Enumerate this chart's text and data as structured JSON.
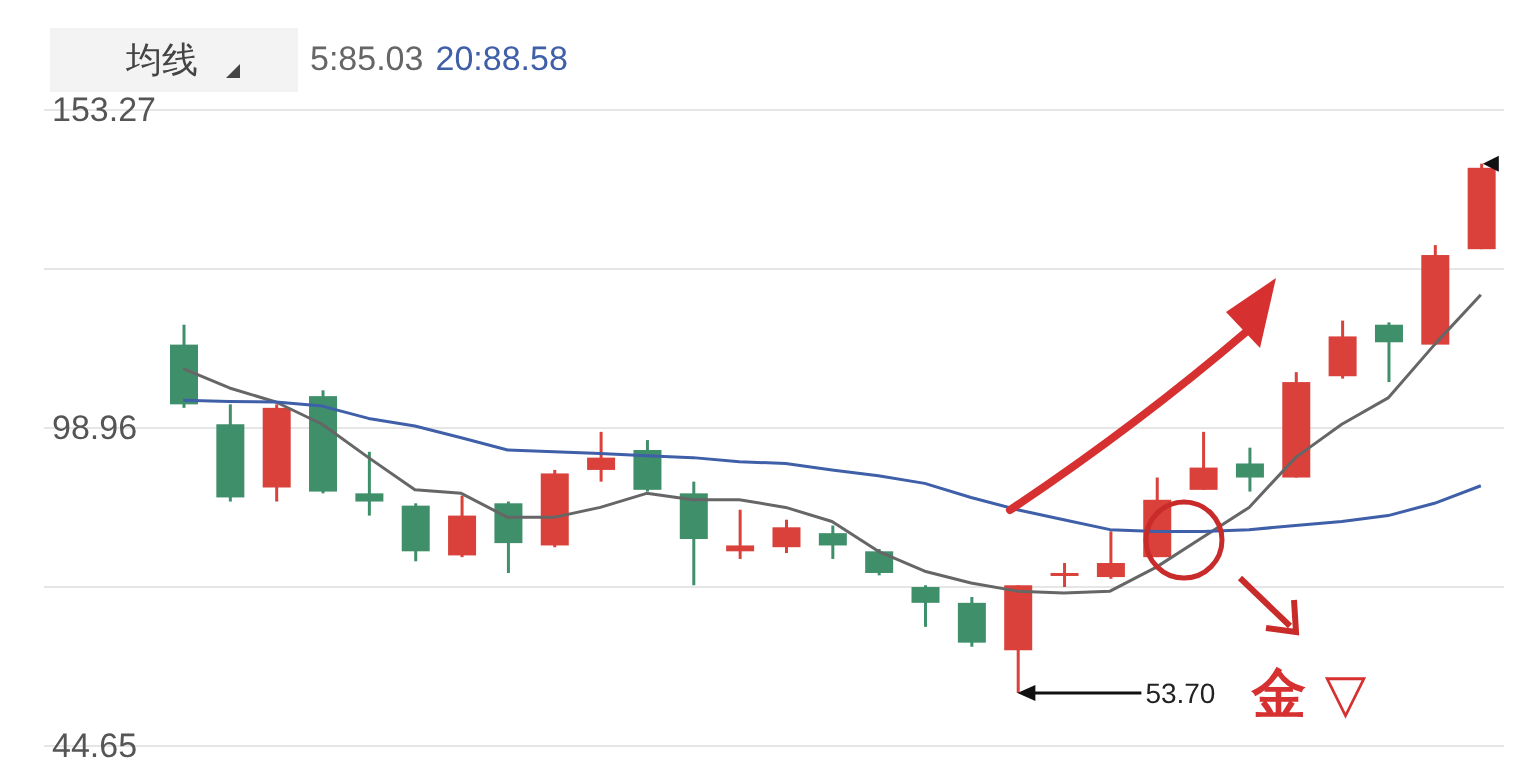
{
  "chart_data": {
    "type": "candlestick",
    "legend_title": "均线",
    "legend": "top left",
    "grid": "y",
    "tick_labels": "y",
    "categories": [
      null,
      null,
      null,
      null,
      null,
      null,
      null,
      null,
      null,
      null,
      null,
      null,
      null,
      null,
      null,
      null,
      null,
      null,
      null,
      null,
      null,
      null,
      null,
      null,
      null,
      null,
      null,
      null,
      null
    ],
    "ohlc": [
      [
        113.2,
        116.6,
        102.4,
        103.0
      ],
      [
        99.6,
        103.0,
        86.4,
        87.1
      ],
      [
        88.8,
        103.0,
        86.4,
        102.4
      ],
      [
        104.4,
        105.4,
        87.8,
        88.1
      ],
      [
        87.8,
        94.9,
        84.0,
        86.4
      ],
      [
        85.7,
        86.1,
        76.2,
        77.9
      ],
      [
        77.2,
        87.4,
        76.9,
        84.0
      ],
      [
        86.1,
        86.4,
        74.2,
        79.3
      ],
      [
        78.9,
        91.8,
        78.6,
        91.2
      ],
      [
        91.8,
        98.3,
        89.8,
        93.9
      ],
      [
        95.2,
        96.9,
        88.1,
        88.4
      ],
      [
        87.8,
        89.8,
        72.1,
        80.0
      ],
      [
        77.9,
        85.0,
        76.6,
        78.9
      ],
      [
        78.6,
        83.3,
        77.6,
        82.0
      ],
      [
        81.0,
        82.3,
        76.6,
        78.9
      ],
      [
        77.9,
        78.3,
        73.8,
        74.2
      ],
      [
        71.8,
        72.1,
        65.0,
        69.1
      ],
      [
        69.1,
        70.1,
        61.6,
        62.3
      ],
      [
        61.0,
        72.1,
        53.7,
        72.1
      ],
      [
        73.8,
        75.9,
        71.8,
        74.2
      ],
      [
        73.5,
        81.3,
        73.2,
        75.9
      ],
      [
        76.9,
        90.5,
        76.9,
        86.7
      ],
      [
        88.4,
        98.3,
        88.4,
        92.2
      ],
      [
        92.9,
        95.6,
        88.1,
        90.5
      ],
      [
        90.5,
        108.5,
        90.5,
        106.8
      ],
      [
        107.8,
        117.3,
        107.4,
        114.6
      ],
      [
        116.6,
        117.0,
        106.8,
        113.6
      ],
      [
        113.2,
        130.2,
        113.2,
        128.5
      ],
      [
        129.5,
        144.1,
        129.5,
        143.4
      ]
    ],
    "colors": [
      "#3f8f6b",
      "#3f8f6b",
      "#d9413a",
      "#3f8f6b",
      "#3f8f6b",
      "#3f8f6b",
      "#d9413a",
      "#3f8f6b",
      "#d9413a",
      "#d9413a",
      "#3f8f6b",
      "#3f8f6b",
      "#d9413a",
      "#d9413a",
      "#3f8f6b",
      "#3f8f6b",
      "#3f8f6b",
      "#3f8f6b",
      "#d9413a",
      "#d9413a",
      "#d9413a",
      "#d9413a",
      "#d9413a",
      "#3f8f6b",
      "#d9413a",
      "#d9413a",
      "#3f8f6b",
      "#d9413a",
      "#d9413a"
    ],
    "series": [
      {
        "type": "line",
        "name": "5:85.03",
        "color": "#666666",
        "values": [
          109.1,
          105.8,
          103.4,
          99.6,
          93.9,
          88.4,
          87.8,
          83.7,
          83.7,
          85.4,
          87.8,
          86.7,
          86.7,
          85.4,
          83.0,
          77.9,
          74.5,
          72.5,
          71.1,
          70.8,
          71.1,
          75.2,
          80.3,
          85.4,
          93.9,
          99.6,
          104.1,
          113.2,
          121.7
        ]
      },
      {
        "type": "line",
        "name": "20:88.58",
        "color": "#3f5fa8",
        "values": [
          103.7,
          103.5,
          103.4,
          102.7,
          100.6,
          99.3,
          97.3,
          95.2,
          94.9,
          94.6,
          94.2,
          93.9,
          93.2,
          92.9,
          91.8,
          90.8,
          89.5,
          87.1,
          85.0,
          83.3,
          81.6,
          81.3,
          81.3,
          81.6,
          82.3,
          83.0,
          84.0,
          86.1,
          89.1
        ]
      }
    ],
    "ylim": [
      44.65,
      153.27
    ],
    "yticks": [
      44.65,
      {
        "value": 71.8,
        "label": null
      },
      98.96,
      {
        "value": 126.12,
        "label": null
      },
      153.27
    ],
    "annotations": [
      "53.70",
      "金 ▽"
    ]
  }
}
